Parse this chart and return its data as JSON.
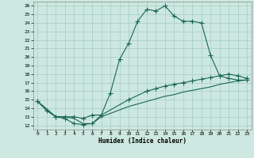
{
  "title": "",
  "xlabel": "Humidex (Indice chaleur)",
  "bg_color": "#cce8e0",
  "grid_color": "#a8ccc4",
  "line_color": "#1a6655",
  "line1_x": [
    0,
    1,
    2,
    3,
    4,
    5,
    6,
    7,
    8,
    9,
    10,
    11,
    12,
    13,
    14,
    15,
    16,
    17,
    18,
    19,
    20,
    21,
    22,
    23
  ],
  "line1_y": [
    14.8,
    13.7,
    13.0,
    12.8,
    12.2,
    12.1,
    12.2,
    13.2,
    15.8,
    19.7,
    21.6,
    24.2,
    25.6,
    25.4,
    26.0,
    24.8,
    24.2,
    24.2,
    24.0,
    20.2,
    17.8,
    17.5,
    17.3,
    17.3
  ],
  "line2_x": [
    0,
    2,
    3,
    4,
    5,
    6,
    7,
    10,
    12,
    13,
    14,
    15,
    16,
    17,
    18,
    19,
    20,
    21,
    22,
    23
  ],
  "line2_y": [
    14.8,
    13.0,
    13.0,
    13.0,
    12.8,
    13.2,
    13.2,
    15.0,
    16.0,
    16.3,
    16.6,
    16.8,
    17.0,
    17.2,
    17.4,
    17.6,
    17.8,
    18.0,
    17.8,
    17.5
  ],
  "line3_x": [
    0,
    2,
    3,
    4,
    5,
    6,
    7,
    10,
    12,
    13,
    14,
    15,
    16,
    17,
    18,
    19,
    20,
    21,
    22,
    23
  ],
  "line3_y": [
    14.8,
    13.0,
    13.0,
    12.8,
    12.2,
    12.2,
    13.0,
    14.2,
    14.8,
    15.1,
    15.4,
    15.6,
    15.9,
    16.1,
    16.3,
    16.5,
    16.8,
    17.0,
    17.2,
    17.3
  ],
  "xlim": [
    -0.5,
    23.5
  ],
  "ylim": [
    11.5,
    26.5
  ],
  "xticks": [
    0,
    1,
    2,
    3,
    4,
    5,
    6,
    7,
    8,
    9,
    10,
    11,
    12,
    13,
    14,
    15,
    16,
    17,
    18,
    19,
    20,
    21,
    22,
    23
  ],
  "yticks": [
    12,
    13,
    14,
    15,
    16,
    17,
    18,
    19,
    20,
    21,
    22,
    23,
    24,
    25,
    26
  ]
}
